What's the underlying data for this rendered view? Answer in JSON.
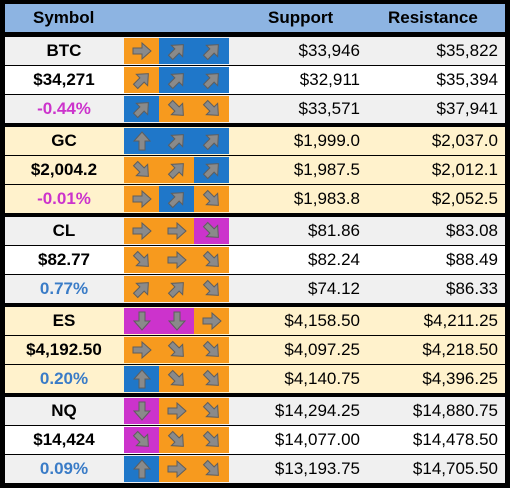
{
  "header": {
    "symbol": "Symbol",
    "support": "Support",
    "resistance": "Resistance"
  },
  "colors": {
    "header_bg": "#8DB4E2",
    "orange": "#F79A1E",
    "blue": "#1F77C9",
    "magenta": "#CC33CC",
    "row_white": "#FFFFFF",
    "row_gray": "#F0F0F0",
    "row_cream": "#FFF2CC",
    "negative_text": "#CC33CC",
    "positive_text": "#3A7CC7"
  },
  "groups": [
    {
      "symbol": "BTC",
      "price": "$34,271",
      "change": "-0.44%",
      "change_sign": "neg",
      "theme": "white",
      "rows": [
        {
          "signals": [
            [
              "orange",
              "right"
            ],
            [
              "blue",
              "up-right"
            ],
            [
              "blue",
              "up-right"
            ]
          ],
          "support": "$33,946",
          "resistance": "$35,822"
        },
        {
          "signals": [
            [
              "orange",
              "up-right"
            ],
            [
              "blue",
              "up-right"
            ],
            [
              "blue",
              "up-right"
            ]
          ],
          "support": "$32,911",
          "resistance": "$35,394"
        },
        {
          "signals": [
            [
              "blue",
              "up-right"
            ],
            [
              "orange",
              "down-right"
            ],
            [
              "orange",
              "down-right"
            ]
          ],
          "support": "$33,571",
          "resistance": "$37,941"
        }
      ]
    },
    {
      "symbol": "GC",
      "price": "$2,004.2",
      "change": "-0.01%",
      "change_sign": "neg",
      "theme": "cream",
      "rows": [
        {
          "signals": [
            [
              "blue",
              "up"
            ],
            [
              "blue",
              "up-right"
            ],
            [
              "blue",
              "up-right"
            ]
          ],
          "support": "$1,999.0",
          "resistance": "$2,037.0"
        },
        {
          "signals": [
            [
              "orange",
              "down-right"
            ],
            [
              "orange",
              "up-right"
            ],
            [
              "blue",
              "up-right"
            ]
          ],
          "support": "$1,987.5",
          "resistance": "$2,012.1"
        },
        {
          "signals": [
            [
              "orange",
              "right"
            ],
            [
              "blue",
              "up-right"
            ],
            [
              "orange",
              "down-right"
            ]
          ],
          "support": "$1,983.8",
          "resistance": "$2,052.5"
        }
      ]
    },
    {
      "symbol": "CL",
      "price": "$82.77",
      "change": "0.77%",
      "change_sign": "pos",
      "theme": "white",
      "rows": [
        {
          "signals": [
            [
              "orange",
              "right"
            ],
            [
              "orange",
              "right"
            ],
            [
              "magenta",
              "down-right"
            ]
          ],
          "support": "$81.86",
          "resistance": "$83.08"
        },
        {
          "signals": [
            [
              "orange",
              "down-right"
            ],
            [
              "orange",
              "right"
            ],
            [
              "orange",
              "down-right"
            ]
          ],
          "support": "$82.24",
          "resistance": "$88.49"
        },
        {
          "signals": [
            [
              "orange",
              "up-right"
            ],
            [
              "orange",
              "up-right"
            ],
            [
              "orange",
              "down-right"
            ]
          ],
          "support": "$74.12",
          "resistance": "$86.33"
        }
      ]
    },
    {
      "symbol": "ES",
      "price": "$4,192.50",
      "change": "0.20%",
      "change_sign": "pos",
      "theme": "cream",
      "rows": [
        {
          "signals": [
            [
              "magenta",
              "down"
            ],
            [
              "magenta",
              "down"
            ],
            [
              "orange",
              "right"
            ]
          ],
          "support": "$4,158.50",
          "resistance": "$4,211.25"
        },
        {
          "signals": [
            [
              "orange",
              "right"
            ],
            [
              "orange",
              "down-right"
            ],
            [
              "orange",
              "down-right"
            ]
          ],
          "support": "$4,097.25",
          "resistance": "$4,218.50"
        },
        {
          "signals": [
            [
              "blue",
              "up"
            ],
            [
              "orange",
              "down-right"
            ],
            [
              "orange",
              "down-right"
            ]
          ],
          "support": "$4,140.75",
          "resistance": "$4,396.25"
        }
      ]
    },
    {
      "symbol": "NQ",
      "price": "$14,424",
      "change": "0.09%",
      "change_sign": "pos",
      "theme": "white",
      "rows": [
        {
          "signals": [
            [
              "magenta",
              "down"
            ],
            [
              "orange",
              "right"
            ],
            [
              "orange",
              "down-right"
            ]
          ],
          "support": "$14,294.25",
          "resistance": "$14,880.75"
        },
        {
          "signals": [
            [
              "magenta",
              "down-right"
            ],
            [
              "orange",
              "down-right"
            ],
            [
              "orange",
              "down-right"
            ]
          ],
          "support": "$14,077.00",
          "resistance": "$14,478.50"
        },
        {
          "signals": [
            [
              "blue",
              "up"
            ],
            [
              "orange",
              "right"
            ],
            [
              "orange",
              "down-right"
            ]
          ],
          "support": "$13,193.75",
          "resistance": "$14,705.50"
        }
      ]
    }
  ]
}
